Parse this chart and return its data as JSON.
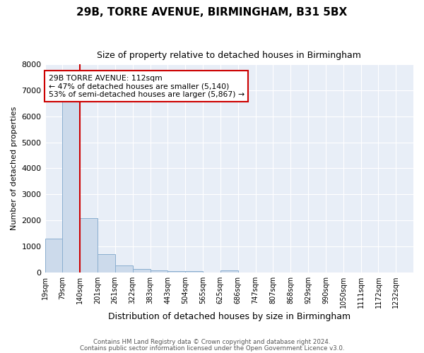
{
  "title1": "29B, TORRE AVENUE, BIRMINGHAM, B31 5BX",
  "title2": "Size of property relative to detached houses in Birmingham",
  "xlabel": "Distribution of detached houses by size in Birmingham",
  "ylabel": "Number of detached properties",
  "bar_color": "#ccdaeb",
  "bar_edge_color": "#8aaecf",
  "vline_color": "#cc0000",
  "vline_x_bin": 1,
  "annotation_text": "29B TORRE AVENUE: 112sqm\n← 47% of detached houses are smaller (5,140)\n53% of semi-detached houses are larger (5,867) →",
  "annotation_box_color": "#ffffff",
  "annotation_box_edge": "#cc0000",
  "categories": [
    "19sqm",
    "79sqm",
    "140sqm",
    "201sqm",
    "261sqm",
    "322sqm",
    "383sqm",
    "443sqm",
    "504sqm",
    "565sqm",
    "625sqm",
    "686sqm",
    "747sqm",
    "807sqm",
    "868sqm",
    "929sqm",
    "990sqm",
    "1050sqm",
    "1111sqm",
    "1172sqm",
    "1232sqm"
  ],
  "bin_left_edges": [
    19,
    79,
    140,
    201,
    261,
    322,
    383,
    443,
    504,
    565,
    625,
    686,
    747,
    807,
    868,
    929,
    990,
    1050,
    1111,
    1172,
    1232
  ],
  "bin_width": 61,
  "values": [
    1300,
    6570,
    2080,
    700,
    270,
    140,
    90,
    60,
    60,
    0,
    70,
    0,
    0,
    0,
    0,
    0,
    0,
    0,
    0,
    0,
    0
  ],
  "ylim": [
    0,
    8000
  ],
  "yticks": [
    0,
    1000,
    2000,
    3000,
    4000,
    5000,
    6000,
    7000,
    8000
  ],
  "footer1": "Contains HM Land Registry data © Crown copyright and database right 2024.",
  "footer2": "Contains public sector information licensed under the Open Government Licence v3.0.",
  "plot_bg_color": "#e8eef7",
  "grid_color": "#ffffff",
  "title1_fontsize": 11,
  "title2_fontsize": 9
}
